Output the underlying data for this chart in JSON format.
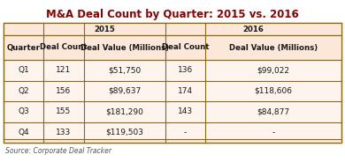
{
  "title": "M&A Deal Count by Quarter: 2015 vs. 2016",
  "source": "Source: Corporate Deal Tracker",
  "header_row1": [
    "",
    "2015",
    "2016"
  ],
  "header_row2": [
    "Quarter",
    "Deal Count",
    "Deal Value (Millions)",
    "Deal Count",
    "Deal Value (Millions)"
  ],
  "rows": [
    [
      "Q1",
      "121",
      "$51,750",
      "136",
      "$99,022"
    ],
    [
      "Q2",
      "156",
      "$89,637",
      "174",
      "$118,606"
    ],
    [
      "Q3",
      "155",
      "$181,290",
      "143",
      "$84,877"
    ],
    [
      "Q4",
      "133",
      "$119,503",
      "-",
      "-"
    ]
  ],
  "bg_color": "#fce8d8",
  "data_bg_color": "#fdf4ee",
  "border_color": "#8B6914",
  "title_color": "#8B0000",
  "text_color": "#1a1a1a",
  "source_color": "#555555",
  "col_boundaries": [
    0.0,
    0.118,
    0.238,
    0.478,
    0.598,
    1.0
  ],
  "title_fontsize": 8.5,
  "header_fontsize": 6.2,
  "data_fontsize": 6.5,
  "source_fontsize": 5.5
}
